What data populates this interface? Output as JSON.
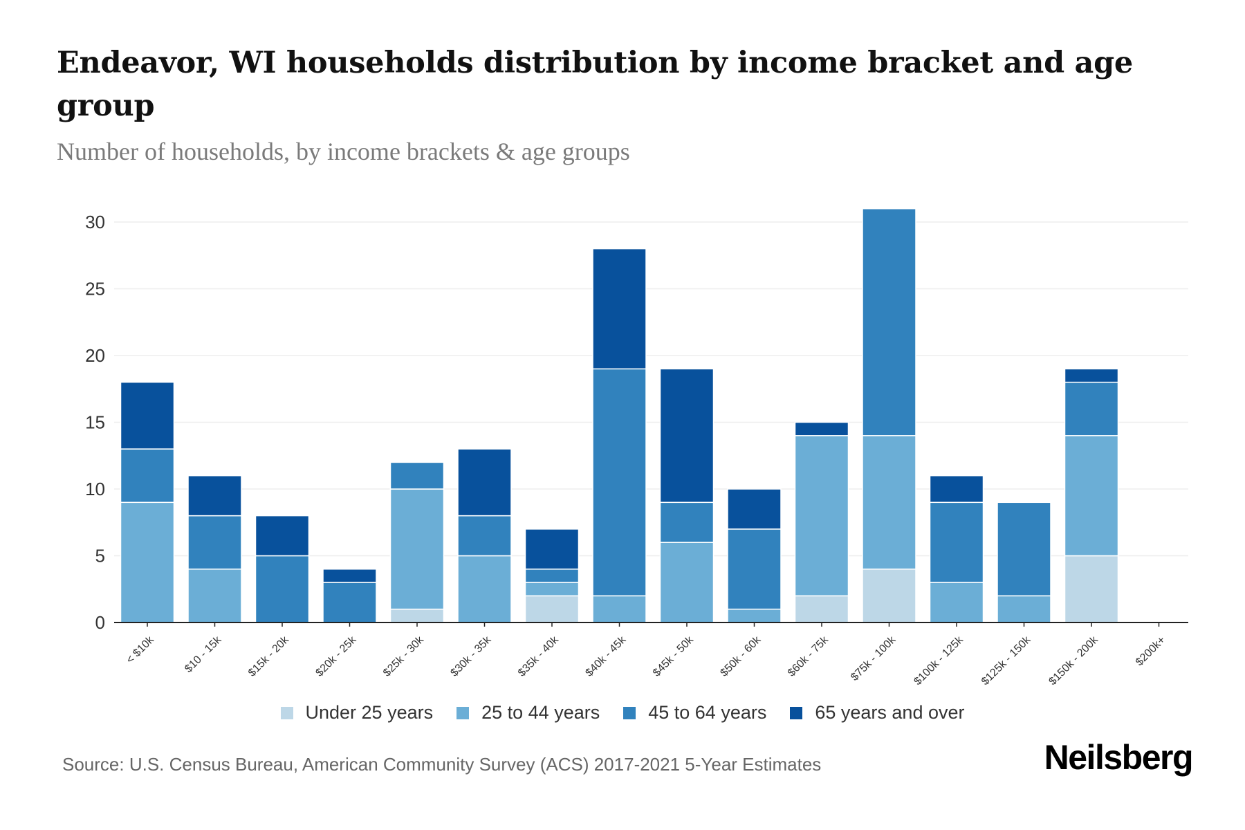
{
  "header": {
    "title": "Endeavor, WI households distribution by income bracket and age group",
    "subtitle": "Number of households, by income brackets & age groups"
  },
  "footer": {
    "source": "Source: U.S. Census Bureau, American Community Survey (ACS) 2017-2021 5-Year Estimates",
    "brand": "Neilsberg"
  },
  "legend": {
    "items": [
      {
        "label": "Under 25 years",
        "color": "#bdd7e7"
      },
      {
        "label": "25 to 44 years",
        "color": "#6baed6"
      },
      {
        "label": "45 to 64 years",
        "color": "#3182bd"
      },
      {
        "label": "65 years and over",
        "color": "#08519c"
      }
    ]
  },
  "chart_data": {
    "type": "bar",
    "stacked": true,
    "title": "Endeavor, WI households distribution by income bracket and age group",
    "subtitle": "Number of households, by income brackets & age groups",
    "xlabel": "",
    "ylabel": "",
    "ylim": [
      0,
      30
    ],
    "yticks": [
      0,
      5,
      10,
      15,
      20,
      25,
      30
    ],
    "grid": true,
    "legend_position": "bottom",
    "categories": [
      "< $10k",
      "$10 - 15k",
      "$15k - 20k",
      "$20k - 25k",
      "$25k - 30k",
      "$30k - 35k",
      "$35k - 40k",
      "$40k - 45k",
      "$45k - 50k",
      "$50k - 60k",
      "$60k - 75k",
      "$75k - 100k",
      "$100k - 125k",
      "$125k - 150k",
      "$150k - 200k",
      "$200k+"
    ],
    "series": [
      {
        "name": "Under 25 years",
        "color": "#bdd7e7",
        "values": [
          0,
          0,
          0,
          0,
          1,
          0,
          2,
          0,
          0,
          0,
          2,
          4,
          0,
          0,
          5,
          0
        ]
      },
      {
        "name": "25 to 44 years",
        "color": "#6baed6",
        "values": [
          9,
          4,
          0,
          0,
          9,
          5,
          1,
          2,
          6,
          1,
          12,
          10,
          3,
          2,
          9,
          0
        ]
      },
      {
        "name": "45 to 64 years",
        "color": "#3182bd",
        "values": [
          4,
          4,
          5,
          3,
          2,
          3,
          1,
          17,
          3,
          6,
          0,
          17,
          6,
          7,
          4,
          0
        ]
      },
      {
        "name": "65 years and over",
        "color": "#08519c",
        "values": [
          5,
          3,
          3,
          1,
          0,
          5,
          3,
          9,
          10,
          3,
          1,
          0,
          2,
          0,
          1,
          0
        ]
      }
    ]
  }
}
